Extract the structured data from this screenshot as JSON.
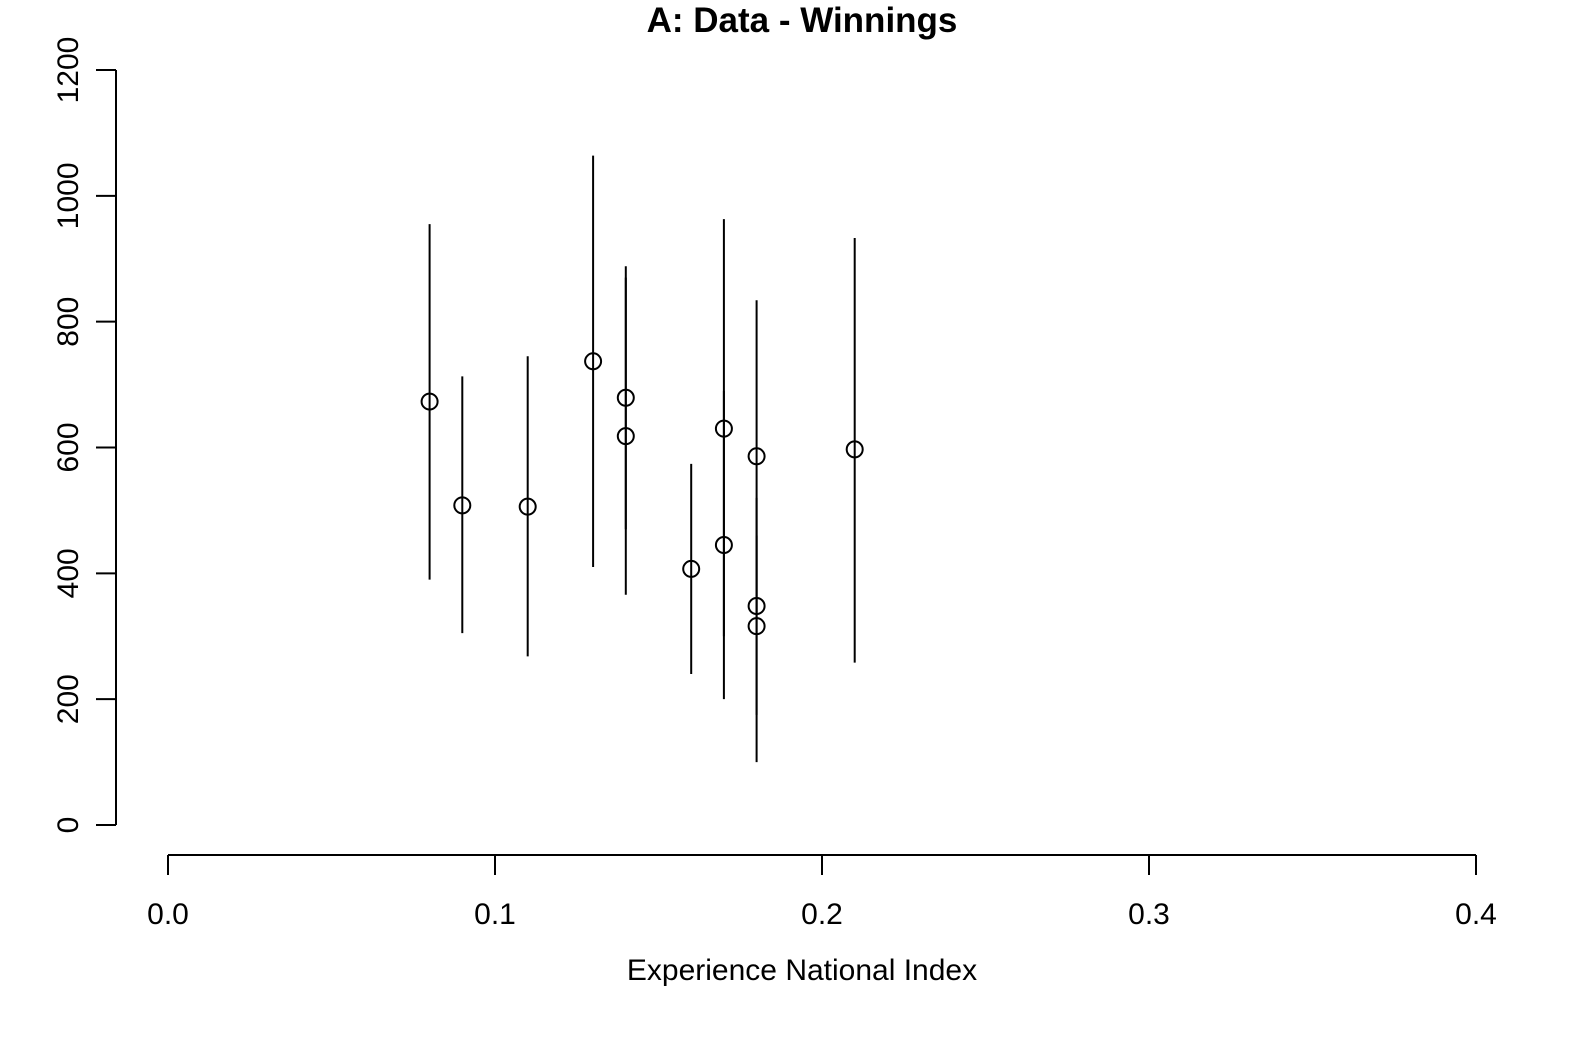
{
  "chart_data": {
    "type": "scatter",
    "title": "A: Data - Winnings",
    "xlabel": "Experience National Index",
    "ylabel": "",
    "xlim": [
      0.0,
      0.4
    ],
    "ylim": [
      0,
      1200
    ],
    "x_ticks": [
      0.0,
      0.1,
      0.2,
      0.3,
      0.4
    ],
    "x_tick_labels": [
      "0.0",
      "0.1",
      "0.2",
      "0.3",
      "0.4"
    ],
    "y_ticks": [
      0,
      200,
      400,
      600,
      800,
      1000,
      1200
    ],
    "y_tick_labels": [
      "0",
      "200",
      "400",
      "600",
      "800",
      "1000",
      "1200"
    ],
    "grid": false,
    "legend": "none",
    "points": [
      {
        "x": 0.08,
        "y": 673,
        "low": 390,
        "high": 955
      },
      {
        "x": 0.09,
        "y": 508,
        "low": 305,
        "high": 713
      },
      {
        "x": 0.11,
        "y": 506,
        "low": 268,
        "high": 745
      },
      {
        "x": 0.13,
        "y": 737,
        "low": 410,
        "high": 1064
      },
      {
        "x": 0.14,
        "y": 679,
        "low": 470,
        "high": 888
      },
      {
        "x": 0.14,
        "y": 618,
        "low": 366,
        "high": 870
      },
      {
        "x": 0.16,
        "y": 407,
        "low": 240,
        "high": 574
      },
      {
        "x": 0.17,
        "y": 630,
        "low": 300,
        "high": 963
      },
      {
        "x": 0.17,
        "y": 445,
        "low": 200,
        "high": 690
      },
      {
        "x": 0.18,
        "y": 586,
        "low": 338,
        "high": 834
      },
      {
        "x": 0.18,
        "y": 348,
        "low": 175,
        "high": 520
      },
      {
        "x": 0.18,
        "y": 316,
        "low": 100,
        "high": 460
      },
      {
        "x": 0.21,
        "y": 597,
        "low": 258,
        "high": 933
      }
    ]
  }
}
